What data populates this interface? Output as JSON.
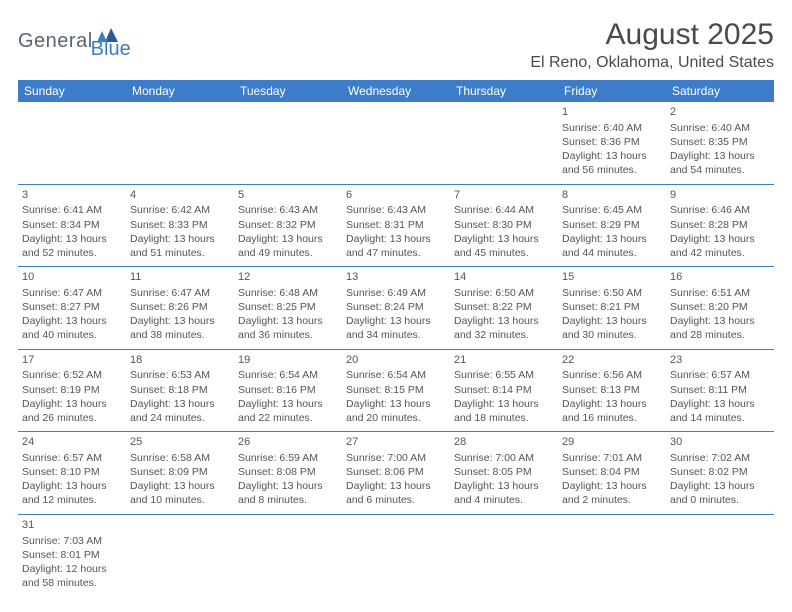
{
  "logo": {
    "gray": "General",
    "blue": "Blue"
  },
  "title": "August 2025",
  "location": "El Reno, Oklahoma, United States",
  "header_bg": "#3d7cc9",
  "header_text": "#ffffff",
  "cell_text": "#555555",
  "border_color": "#3d7cc9",
  "dayNames": [
    "Sunday",
    "Monday",
    "Tuesday",
    "Wednesday",
    "Thursday",
    "Friday",
    "Saturday"
  ],
  "weeks": [
    [
      null,
      null,
      null,
      null,
      null,
      {
        "n": "1",
        "sr": "Sunrise: 6:40 AM",
        "ss": "Sunset: 8:36 PM",
        "d1": "Daylight: 13 hours",
        "d2": "and 56 minutes."
      },
      {
        "n": "2",
        "sr": "Sunrise: 6:40 AM",
        "ss": "Sunset: 8:35 PM",
        "d1": "Daylight: 13 hours",
        "d2": "and 54 minutes."
      }
    ],
    [
      {
        "n": "3",
        "sr": "Sunrise: 6:41 AM",
        "ss": "Sunset: 8:34 PM",
        "d1": "Daylight: 13 hours",
        "d2": "and 52 minutes."
      },
      {
        "n": "4",
        "sr": "Sunrise: 6:42 AM",
        "ss": "Sunset: 8:33 PM",
        "d1": "Daylight: 13 hours",
        "d2": "and 51 minutes."
      },
      {
        "n": "5",
        "sr": "Sunrise: 6:43 AM",
        "ss": "Sunset: 8:32 PM",
        "d1": "Daylight: 13 hours",
        "d2": "and 49 minutes."
      },
      {
        "n": "6",
        "sr": "Sunrise: 6:43 AM",
        "ss": "Sunset: 8:31 PM",
        "d1": "Daylight: 13 hours",
        "d2": "and 47 minutes."
      },
      {
        "n": "7",
        "sr": "Sunrise: 6:44 AM",
        "ss": "Sunset: 8:30 PM",
        "d1": "Daylight: 13 hours",
        "d2": "and 45 minutes."
      },
      {
        "n": "8",
        "sr": "Sunrise: 6:45 AM",
        "ss": "Sunset: 8:29 PM",
        "d1": "Daylight: 13 hours",
        "d2": "and 44 minutes."
      },
      {
        "n": "9",
        "sr": "Sunrise: 6:46 AM",
        "ss": "Sunset: 8:28 PM",
        "d1": "Daylight: 13 hours",
        "d2": "and 42 minutes."
      }
    ],
    [
      {
        "n": "10",
        "sr": "Sunrise: 6:47 AM",
        "ss": "Sunset: 8:27 PM",
        "d1": "Daylight: 13 hours",
        "d2": "and 40 minutes."
      },
      {
        "n": "11",
        "sr": "Sunrise: 6:47 AM",
        "ss": "Sunset: 8:26 PM",
        "d1": "Daylight: 13 hours",
        "d2": "and 38 minutes."
      },
      {
        "n": "12",
        "sr": "Sunrise: 6:48 AM",
        "ss": "Sunset: 8:25 PM",
        "d1": "Daylight: 13 hours",
        "d2": "and 36 minutes."
      },
      {
        "n": "13",
        "sr": "Sunrise: 6:49 AM",
        "ss": "Sunset: 8:24 PM",
        "d1": "Daylight: 13 hours",
        "d2": "and 34 minutes."
      },
      {
        "n": "14",
        "sr": "Sunrise: 6:50 AM",
        "ss": "Sunset: 8:22 PM",
        "d1": "Daylight: 13 hours",
        "d2": "and 32 minutes."
      },
      {
        "n": "15",
        "sr": "Sunrise: 6:50 AM",
        "ss": "Sunset: 8:21 PM",
        "d1": "Daylight: 13 hours",
        "d2": "and 30 minutes."
      },
      {
        "n": "16",
        "sr": "Sunrise: 6:51 AM",
        "ss": "Sunset: 8:20 PM",
        "d1": "Daylight: 13 hours",
        "d2": "and 28 minutes."
      }
    ],
    [
      {
        "n": "17",
        "sr": "Sunrise: 6:52 AM",
        "ss": "Sunset: 8:19 PM",
        "d1": "Daylight: 13 hours",
        "d2": "and 26 minutes."
      },
      {
        "n": "18",
        "sr": "Sunrise: 6:53 AM",
        "ss": "Sunset: 8:18 PM",
        "d1": "Daylight: 13 hours",
        "d2": "and 24 minutes."
      },
      {
        "n": "19",
        "sr": "Sunrise: 6:54 AM",
        "ss": "Sunset: 8:16 PM",
        "d1": "Daylight: 13 hours",
        "d2": "and 22 minutes."
      },
      {
        "n": "20",
        "sr": "Sunrise: 6:54 AM",
        "ss": "Sunset: 8:15 PM",
        "d1": "Daylight: 13 hours",
        "d2": "and 20 minutes."
      },
      {
        "n": "21",
        "sr": "Sunrise: 6:55 AM",
        "ss": "Sunset: 8:14 PM",
        "d1": "Daylight: 13 hours",
        "d2": "and 18 minutes."
      },
      {
        "n": "22",
        "sr": "Sunrise: 6:56 AM",
        "ss": "Sunset: 8:13 PM",
        "d1": "Daylight: 13 hours",
        "d2": "and 16 minutes."
      },
      {
        "n": "23",
        "sr": "Sunrise: 6:57 AM",
        "ss": "Sunset: 8:11 PM",
        "d1": "Daylight: 13 hours",
        "d2": "and 14 minutes."
      }
    ],
    [
      {
        "n": "24",
        "sr": "Sunrise: 6:57 AM",
        "ss": "Sunset: 8:10 PM",
        "d1": "Daylight: 13 hours",
        "d2": "and 12 minutes."
      },
      {
        "n": "25",
        "sr": "Sunrise: 6:58 AM",
        "ss": "Sunset: 8:09 PM",
        "d1": "Daylight: 13 hours",
        "d2": "and 10 minutes."
      },
      {
        "n": "26",
        "sr": "Sunrise: 6:59 AM",
        "ss": "Sunset: 8:08 PM",
        "d1": "Daylight: 13 hours",
        "d2": "and 8 minutes."
      },
      {
        "n": "27",
        "sr": "Sunrise: 7:00 AM",
        "ss": "Sunset: 8:06 PM",
        "d1": "Daylight: 13 hours",
        "d2": "and 6 minutes."
      },
      {
        "n": "28",
        "sr": "Sunrise: 7:00 AM",
        "ss": "Sunset: 8:05 PM",
        "d1": "Daylight: 13 hours",
        "d2": "and 4 minutes."
      },
      {
        "n": "29",
        "sr": "Sunrise: 7:01 AM",
        "ss": "Sunset: 8:04 PM",
        "d1": "Daylight: 13 hours",
        "d2": "and 2 minutes."
      },
      {
        "n": "30",
        "sr": "Sunrise: 7:02 AM",
        "ss": "Sunset: 8:02 PM",
        "d1": "Daylight: 13 hours",
        "d2": "and 0 minutes."
      }
    ],
    [
      {
        "n": "31",
        "sr": "Sunrise: 7:03 AM",
        "ss": "Sunset: 8:01 PM",
        "d1": "Daylight: 12 hours",
        "d2": "and 58 minutes."
      },
      null,
      null,
      null,
      null,
      null,
      null
    ]
  ]
}
